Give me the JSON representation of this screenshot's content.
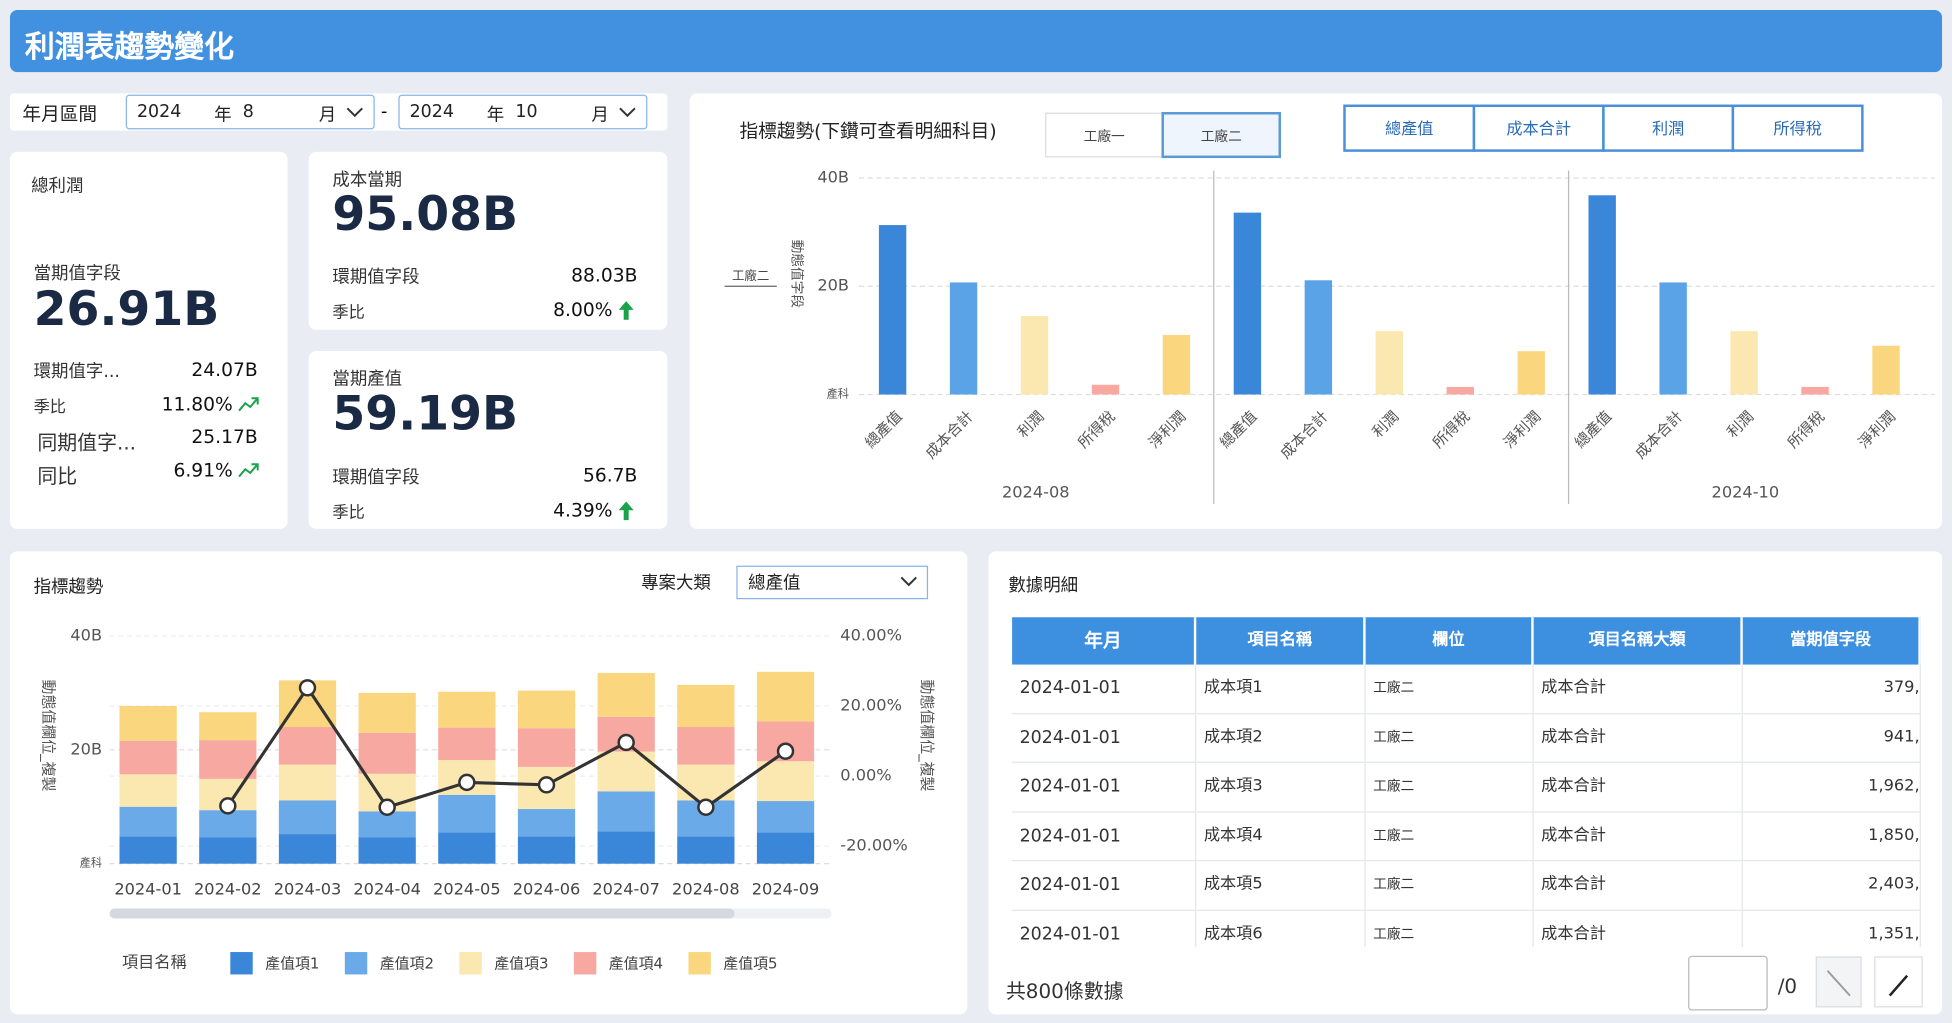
{
  "header": {
    "title": "利潤表趨勢變化"
  },
  "filter": {
    "label": "年月區間",
    "start": {
      "year": "2024",
      "year_unit": "年",
      "month": "8",
      "month_unit": "月"
    },
    "separator": "-",
    "end": {
      "year": "2024",
      "year_unit": "年",
      "month": "10",
      "month_unit": "月"
    }
  },
  "kpis": [
    {
      "title": "總利潤",
      "value_label": "當期值字段",
      "value": "26.91B",
      "rows": [
        [
          "環期值字...",
          "24.07B"
        ],
        [
          "季比",
          "11.80%"
        ],
        [
          "同期值字...",
          "25.17B"
        ],
        [
          "同比",
          "6.91%"
        ]
      ]
    },
    {
      "title": "成本當期",
      "value": "95.08B",
      "rows": [
        [
          "環期值字段",
          "88.03B"
        ],
        [
          "季比",
          "8.00%"
        ]
      ]
    },
    {
      "title": "當期產值",
      "value": "59.19B",
      "rows": [
        [
          "環期值字段",
          "56.7B"
        ],
        [
          "季比",
          "4.39%"
        ]
      ]
    }
  ],
  "chart_data": [
    {
      "type": "bar",
      "title": "指標趨勢(下鑽可查看明細科目)",
      "tabs": [
        "工廠一",
        "工廠二"
      ],
      "buttons": [
        "總產值",
        "成本合計",
        "利潤",
        "所得稅"
      ],
      "ylabel": "動態值字段",
      "ylim": [
        0,
        40
      ],
      "yticks": [
        {
          "value": 0,
          "label": "產科"
        },
        {
          "value": 20,
          "label": "20B"
        },
        {
          "value": 40,
          "label": "40B"
        }
      ],
      "grid": true,
      "categories": [
        "總產值",
        "成本合計",
        "利潤",
        "所得稅",
        "淨利潤"
      ],
      "colors": [
        "#3a86d8",
        "#5aa3e6",
        "#fbe7b0",
        "#f7a8a0",
        "#fad77f"
      ],
      "groups": [
        "2024-08",
        null,
        "2024-10"
      ],
      "values": [
        [
          31.3,
          20.7,
          14.5,
          1.8,
          11.0
        ],
        [
          33.6,
          21.1,
          11.7,
          1.4,
          8.0
        ],
        [
          36.8,
          20.7,
          11.7,
          1.4,
          9.0
        ]
      ]
    },
    {
      "type": "stacked_bar",
      "title": "指標趨勢",
      "filter_label": "專案大類",
      "filter_value": "總產值",
      "categories": [
        "2024-01",
        "2024-02",
        "2024-03",
        "2024-04",
        "2024-05",
        "2024-06",
        "2024-07",
        "2024-08",
        "2024-09"
      ],
      "ylabel": "動態值欄位_複製",
      "y2label": "動態值欄位_複製",
      "ylim": [
        0,
        40
      ],
      "yticks": [
        {
          "value": 0,
          "label": "產科"
        },
        {
          "value": 20,
          "label": "20B"
        },
        {
          "value": 40,
          "label": "40B"
        }
      ],
      "y2lim": [
        -25,
        40
      ],
      "y2ticks": [
        {
          "value": -20,
          "label": "-20.00%"
        },
        {
          "value": 0,
          "label": "0.00%"
        },
        {
          "value": 20,
          "label": "20.00%"
        },
        {
          "value": 40,
          "label": "40.00%"
        }
      ],
      "grid": true,
      "legend_title": "項目名稱",
      "series": [
        {
          "name": "產值項1",
          "color": "#3a86d8",
          "values": [
            4.8,
            4.6,
            5.2,
            4.6,
            5.5,
            4.8,
            5.7,
            4.8,
            5.5
          ]
        },
        {
          "name": "產值項2",
          "color": "#6aaae8",
          "values": [
            5.2,
            4.8,
            5.9,
            4.6,
            6.6,
            4.8,
            7.0,
            6.3,
            5.5
          ]
        },
        {
          "name": "產值項3",
          "color": "#fbe7b0",
          "values": [
            5.7,
            5.5,
            6.3,
            6.6,
            6.1,
            7.4,
            7.0,
            6.3,
            7.0
          ]
        },
        {
          "name": "產值項4",
          "color": "#f7a8a0",
          "values": [
            5.9,
            6.8,
            6.6,
            7.2,
            5.7,
            6.8,
            6.1,
            6.6,
            7.0
          ]
        },
        {
          "name": "產值項5",
          "color": "#fad77f",
          "values": [
            6.1,
            4.9,
            8.2,
            7.0,
            6.3,
            6.6,
            7.7,
            7.4,
            8.7
          ]
        },
        {
          "type": "line",
          "axis": "y2",
          "color": "#333333",
          "values": [
            null,
            -8.5,
            25.2,
            -8.9,
            -1.8,
            -2.5,
            9.6,
            -8.9,
            7.1
          ]
        }
      ]
    }
  ],
  "table": {
    "title": "數據明細",
    "columns": [
      "年月",
      "項目名稱",
      "欄位",
      "項目名稱大類",
      "當期值字段"
    ],
    "rows": [
      [
        "2024-01-01",
        "成本項1",
        "工廠二",
        "成本合計",
        "379,"
      ],
      [
        "2024-01-01",
        "成本項2",
        "工廠二",
        "成本合計",
        "941,"
      ],
      [
        "2024-01-01",
        "成本項3",
        "工廠二",
        "成本合計",
        "1,962,"
      ],
      [
        "2024-01-01",
        "成本項4",
        "工廠二",
        "成本合計",
        "1,850,"
      ],
      [
        "2024-01-01",
        "成本項5",
        "工廠二",
        "成本合計",
        "2,403,"
      ],
      [
        "2024-01-01",
        "成本項6",
        "工廠二",
        "成本合計",
        "1,351,"
      ]
    ],
    "footer": "共800條數據",
    "page": "/0"
  }
}
